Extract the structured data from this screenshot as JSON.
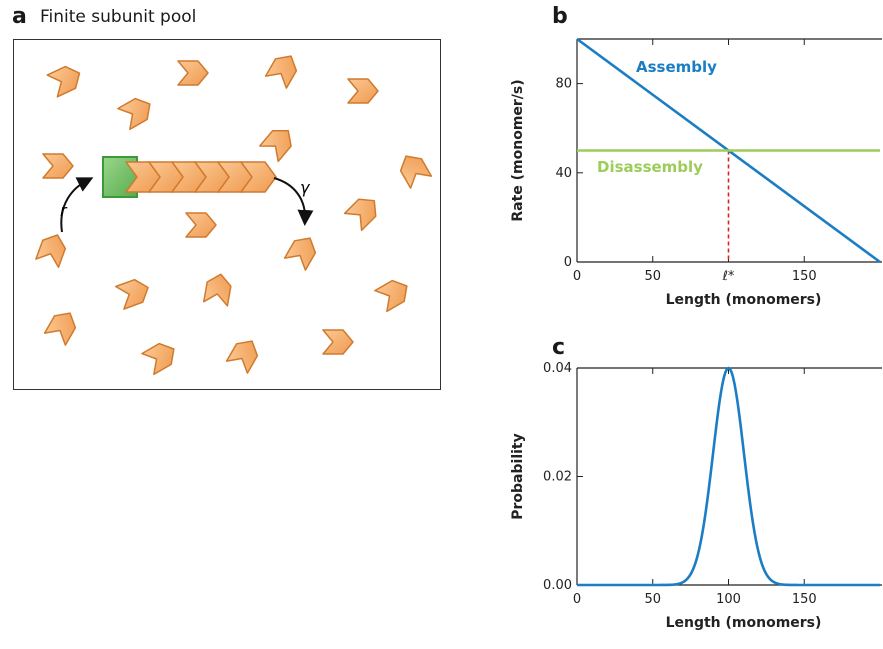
{
  "panel_a": {
    "letter": "a",
    "title": "Finite subunit pool",
    "rate_in_label": "r",
    "rate_out_label": "γ",
    "colors": {
      "subunit_fill": "#f4ad6a",
      "subunit_stroke": "#d07a2e",
      "seed_fill": "#74c06a",
      "seed_stroke": "#3c9a3b"
    }
  },
  "panel_b": {
    "letter": "b",
    "assembly_label": "Assembly",
    "disassembly_label": "Disassembly",
    "lstar_label": "ℓ*"
  },
  "panel_c": {
    "letter": "c"
  },
  "chart_data": [
    {
      "type": "line",
      "panel": "b",
      "ylabel": "Rate (monomer/s)",
      "xlabel": "Length (monomers)",
      "xlim": [
        0,
        200
      ],
      "ylim": [
        0,
        100
      ],
      "xticks": [
        {
          "value": 0,
          "label": "0"
        },
        {
          "value": 50,
          "label": "50"
        },
        {
          "value": 100,
          "label": "ℓ*"
        },
        {
          "value": 150,
          "label": "150"
        }
      ],
      "yticks": [
        {
          "value": 0,
          "label": "0"
        },
        {
          "value": 40,
          "label": "40"
        },
        {
          "value": 80,
          "label": "80"
        }
      ],
      "series": [
        {
          "name": "Assembly",
          "color": "#1b7dc4",
          "x": [
            0,
            200
          ],
          "y": [
            100,
            0
          ]
        },
        {
          "name": "Disassembly",
          "color": "#9dcc5a",
          "x": [
            0,
            200
          ],
          "y": [
            50,
            50
          ]
        }
      ],
      "marker_x": 100,
      "marker_color": "#d9261c"
    },
    {
      "type": "line",
      "panel": "c",
      "ylabel": "Probability",
      "xlabel": "Length (monomers)",
      "xlim": [
        0,
        200
      ],
      "ylim": [
        0,
        0.04
      ],
      "xticks": [
        {
          "value": 0,
          "label": "0"
        },
        {
          "value": 50,
          "label": "50"
        },
        {
          "value": 100,
          "label": "100"
        },
        {
          "value": 150,
          "label": "150"
        }
      ],
      "yticks": [
        {
          "value": 0,
          "label": "0.00"
        },
        {
          "value": 0.02,
          "label": "0.02"
        },
        {
          "value": 0.04,
          "label": "0.04"
        }
      ],
      "series": [
        {
          "color": "#1b7dc4",
          "x": [
            0,
            60,
            70,
            75,
            80,
            85,
            90,
            95,
            100,
            105,
            110,
            115,
            120,
            125,
            130,
            140,
            200
          ],
          "y": [
            0,
            0.0002,
            0.001,
            0.0023,
            0.0054,
            0.0114,
            0.0215,
            0.033,
            0.04,
            0.033,
            0.0215,
            0.0114,
            0.0054,
            0.0023,
            0.001,
            0.0002,
            0
          ]
        }
      ]
    }
  ]
}
